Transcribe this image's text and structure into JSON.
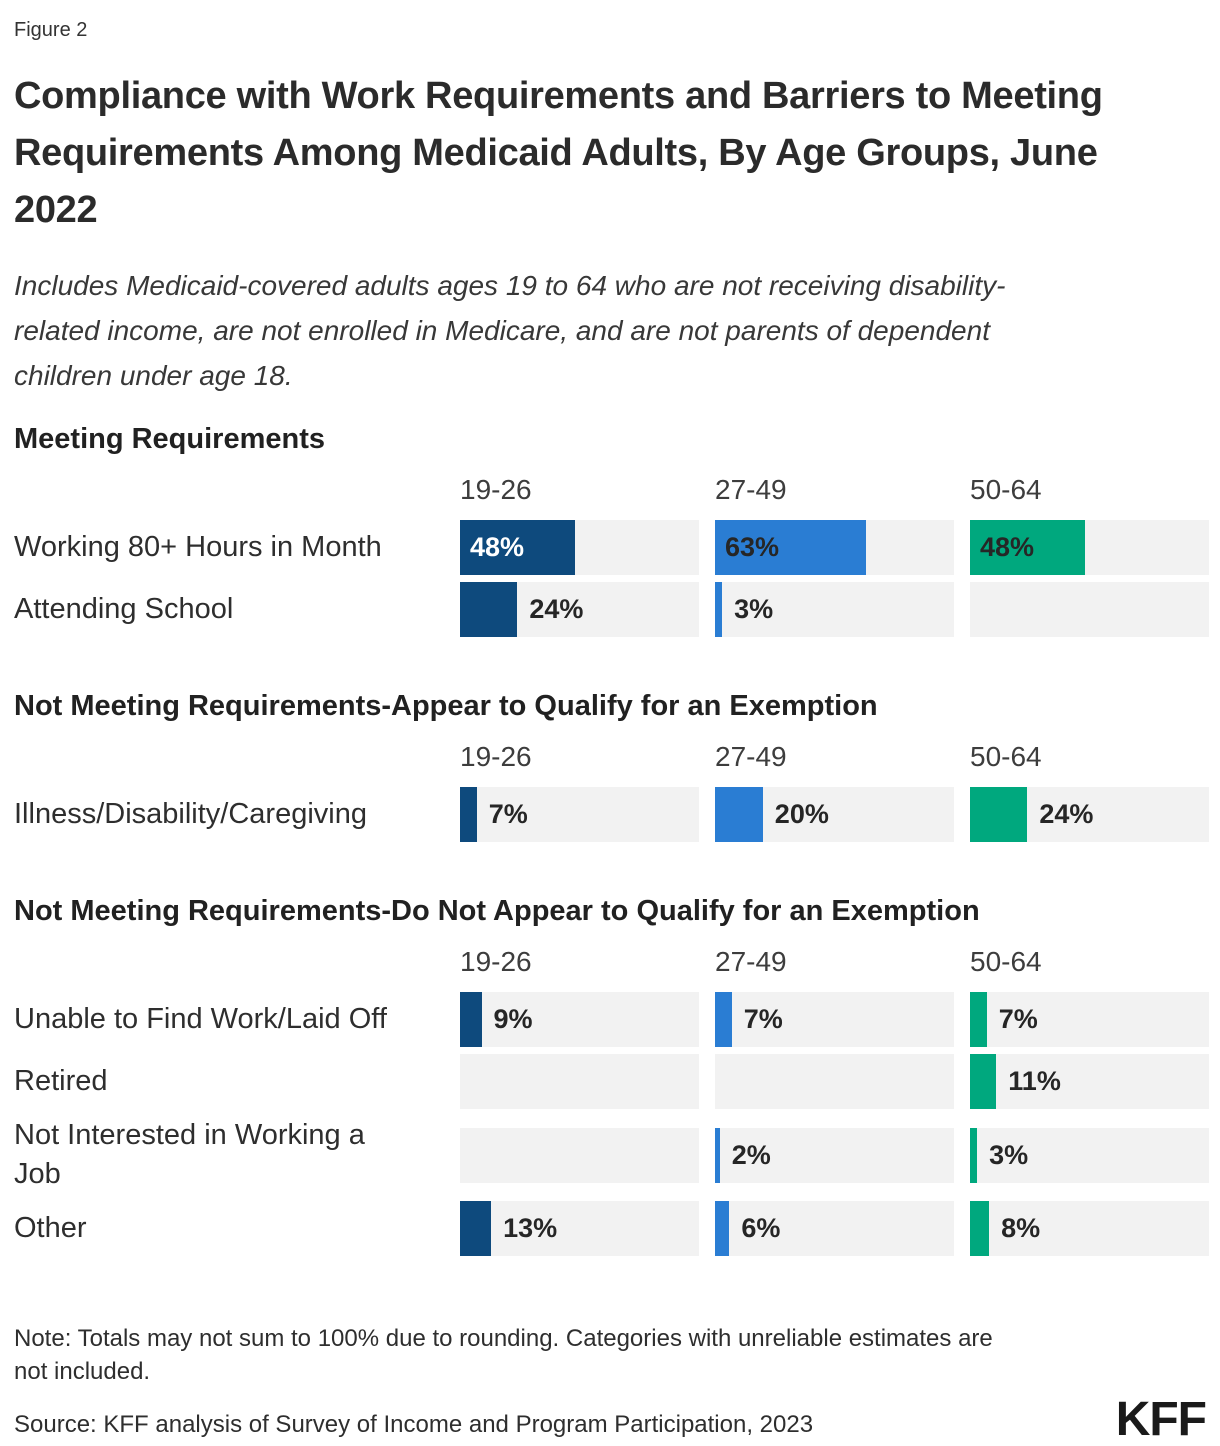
{
  "figure_label": "Figure 2",
  "title": "Compliance with Work Requirements and Barriers to Meeting\nRequirements Among Medicaid Adults, By Age Groups, June\n2022",
  "subtitle": "Includes Medicaid-covered adults ages 19 to 64 who are not receiving disability-\nrelated income, are not enrolled in Medicare, and are not parents of dependent\nchildren under age 18.",
  "age_groups": [
    "19-26",
    "27-49",
    "50-64"
  ],
  "colors": [
    "#0e4a7d",
    "#2a7dd3",
    "#00a87e"
  ],
  "track_color": "#f2f2f2",
  "sections": [
    {
      "header": "Meeting Requirements",
      "rows": [
        {
          "label": "Working 80+ Hours in Month",
          "cells": [
            {
              "value": 48,
              "display": "48%",
              "inside": true,
              "white": true
            },
            {
              "value": 63,
              "display": "63%",
              "inside": true,
              "white": false
            },
            {
              "value": 48,
              "display": "48%",
              "inside": true,
              "white": false
            }
          ]
        },
        {
          "label": "Attending School",
          "cells": [
            {
              "value": 24,
              "display": "24%",
              "inside": false,
              "white": false
            },
            {
              "value": 3,
              "display": "3%",
              "inside": false,
              "white": false
            },
            null
          ]
        }
      ]
    },
    {
      "header": "Not Meeting Requirements-Appear to Qualify for an Exemption",
      "rows": [
        {
          "label": "Illness/Disability/Caregiving",
          "cells": [
            {
              "value": 7,
              "display": "7%",
              "inside": false,
              "white": false
            },
            {
              "value": 20,
              "display": "20%",
              "inside": false,
              "white": false
            },
            {
              "value": 24,
              "display": "24%",
              "inside": false,
              "white": false
            }
          ]
        }
      ]
    },
    {
      "header": "Not Meeting Requirements-Do Not Appear to Qualify for an Exemption",
      "rows": [
        {
          "label": "Unable to Find Work/Laid Off",
          "cells": [
            {
              "value": 9,
              "display": "9%",
              "inside": false,
              "white": false
            },
            {
              "value": 7,
              "display": "7%",
              "inside": false,
              "white": false
            },
            {
              "value": 7,
              "display": "7%",
              "inside": false,
              "white": false
            }
          ]
        },
        {
          "label": "Retired",
          "cells": [
            null,
            null,
            {
              "value": 11,
              "display": "11%",
              "inside": false,
              "white": false
            }
          ]
        },
        {
          "label": "Not Interested in Working a\nJob",
          "cells": [
            null,
            {
              "value": 2,
              "display": "2%",
              "inside": false,
              "white": false
            },
            {
              "value": 3,
              "display": "3%",
              "inside": false,
              "white": false
            }
          ]
        },
        {
          "label": "Other",
          "cells": [
            {
              "value": 13,
              "display": "13%",
              "inside": false,
              "white": false
            },
            {
              "value": 6,
              "display": "6%",
              "inside": false,
              "white": false
            },
            {
              "value": 8,
              "display": "8%",
              "inside": false,
              "white": false
            }
          ]
        }
      ]
    }
  ],
  "note": "Note: Totals may not sum to 100% due to rounding. Categories with unreliable estimates are\nnot included.",
  "source": "Source: KFF analysis of Survey of Income and Program Participation, 2023",
  "logo": "KFF",
  "chart_data": [
    {
      "type": "bar",
      "orientation": "horizontal",
      "title": "Meeting Requirements",
      "unit": "%",
      "xlim": [
        0,
        100
      ],
      "grid": false,
      "legend_position": "column-headers-top",
      "categories": [
        "Working 80+ Hours in Month",
        "Attending School"
      ],
      "series": [
        {
          "name": "19-26",
          "values": [
            48,
            24
          ]
        },
        {
          "name": "27-49",
          "values": [
            63,
            3
          ]
        },
        {
          "name": "50-64",
          "values": [
            48,
            null
          ]
        }
      ]
    },
    {
      "type": "bar",
      "orientation": "horizontal",
      "title": "Not Meeting Requirements-Appear to Qualify for an Exemption",
      "unit": "%",
      "xlim": [
        0,
        100
      ],
      "grid": false,
      "legend_position": "column-headers-top",
      "categories": [
        "Illness/Disability/Caregiving"
      ],
      "series": [
        {
          "name": "19-26",
          "values": [
            7
          ]
        },
        {
          "name": "27-49",
          "values": [
            20
          ]
        },
        {
          "name": "50-64",
          "values": [
            24
          ]
        }
      ]
    },
    {
      "type": "bar",
      "orientation": "horizontal",
      "title": "Not Meeting Requirements-Do Not Appear to Qualify for an Exemption",
      "unit": "%",
      "xlim": [
        0,
        100
      ],
      "grid": false,
      "legend_position": "column-headers-top",
      "categories": [
        "Unable to Find Work/Laid Off",
        "Retired",
        "Not Interested in Working a Job",
        "Other"
      ],
      "series": [
        {
          "name": "19-26",
          "values": [
            9,
            null,
            null,
            13
          ]
        },
        {
          "name": "27-49",
          "values": [
            7,
            null,
            2,
            6
          ]
        },
        {
          "name": "50-64",
          "values": [
            7,
            11,
            3,
            8
          ]
        }
      ]
    }
  ]
}
